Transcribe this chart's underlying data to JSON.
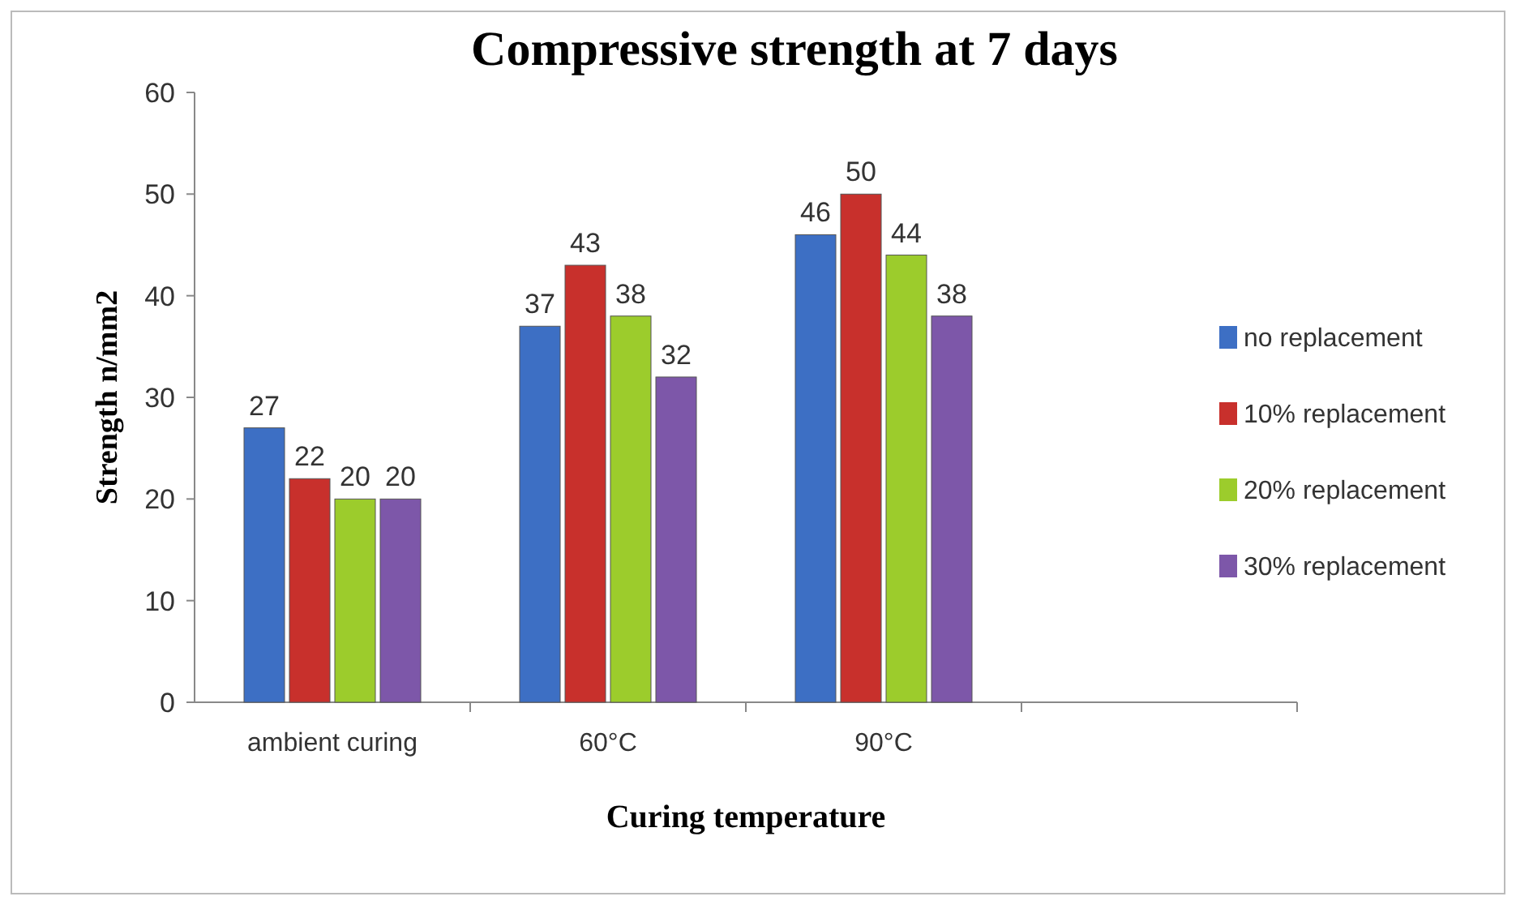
{
  "chart_data": {
    "type": "bar",
    "title": "Compressive strength at 7 days",
    "xlabel": "Curing temperature",
    "ylabel": "Strength n/mm2",
    "categories": [
      "ambient curing",
      "60°C",
      "90°C",
      null
    ],
    "series": [
      {
        "name": "no replacement",
        "color": "#3d6fc4",
        "values": [
          27,
          37,
          46,
          null
        ]
      },
      {
        "name": "10% replacement",
        "color": "#c8302c",
        "values": [
          22,
          43,
          50,
          null
        ]
      },
      {
        "name": "20% replacement",
        "color": "#9ccc2c",
        "values": [
          20,
          38,
          44,
          null
        ]
      },
      {
        "name": "30% replacement",
        "color": "#7d57a9",
        "values": [
          20,
          32,
          38,
          null
        ]
      }
    ],
    "ylim": [
      0,
      60
    ],
    "yticks": [
      0,
      10,
      20,
      30,
      40,
      50,
      60
    ],
    "data_labels": true,
    "legend": "right",
    "grid": false
  }
}
